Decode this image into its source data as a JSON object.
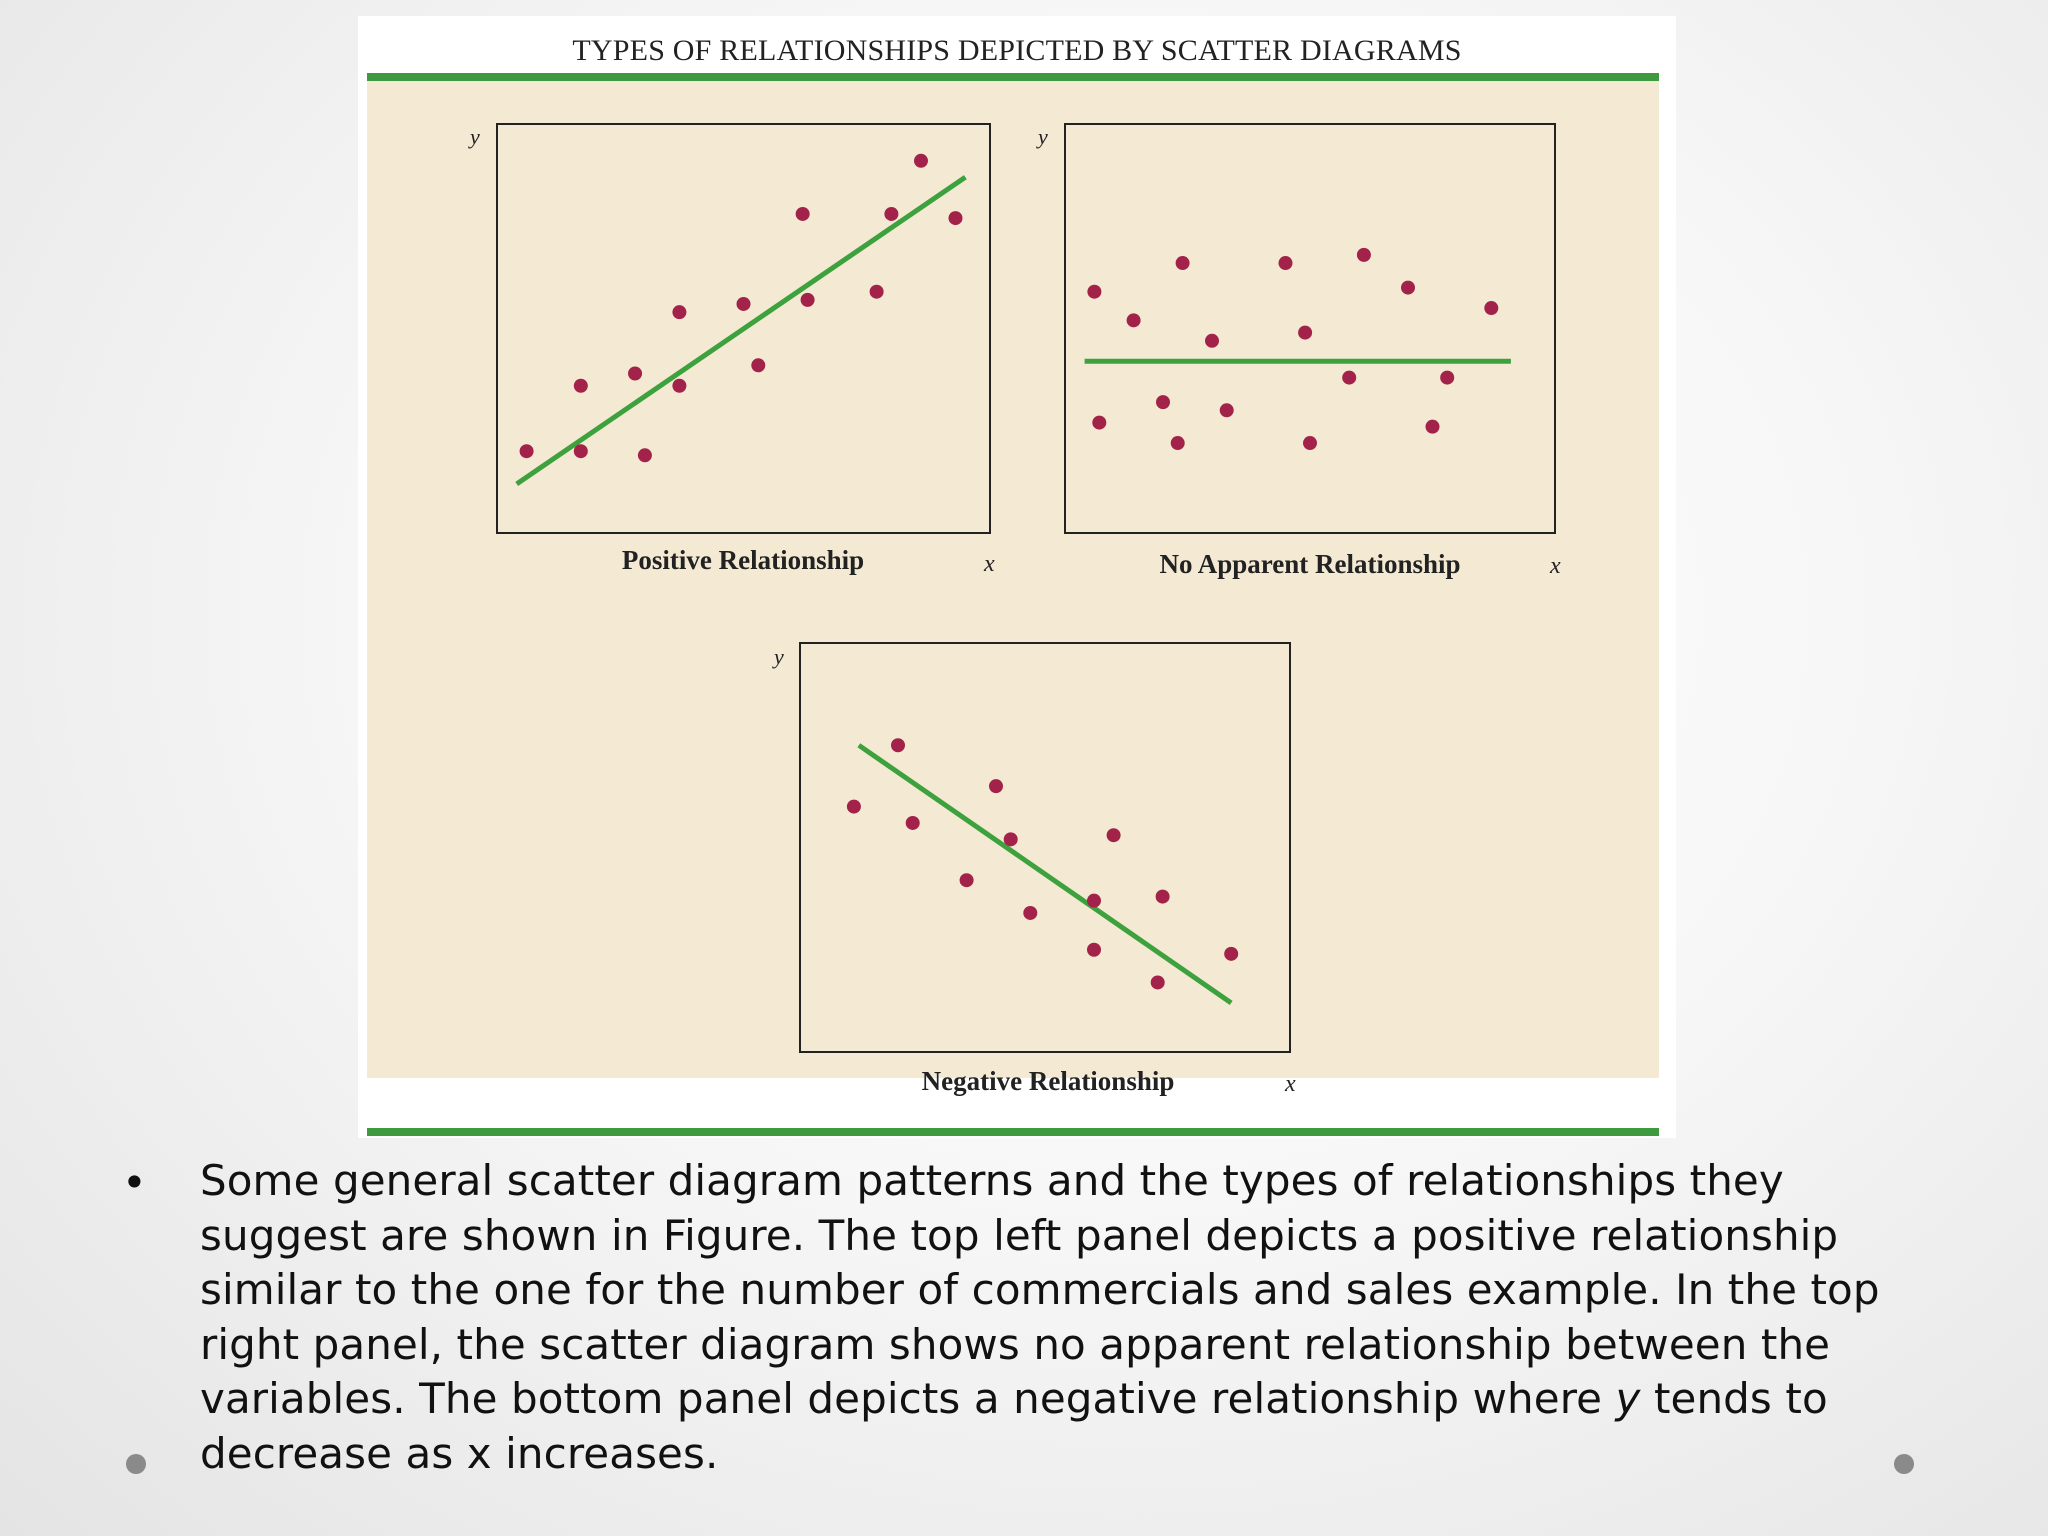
{
  "figure": {
    "title": "TYPES OF RELATIONSHIPS DEPICTED BY SCATTER DIAGRAMS"
  },
  "colors": {
    "panel_background": "#f4ead4",
    "rule_green": "#3f9a3f",
    "trend_line": "#3da13d",
    "points": "#a3224a",
    "frame": "#222222"
  },
  "chart_data": [
    {
      "type": "scatter",
      "panel": "top-left",
      "xlabel": "x",
      "ylabel": "y",
      "caption": "Positive Relationship",
      "xlim": [
        0,
        10
      ],
      "ylim": [
        0,
        10
      ],
      "points": [
        {
          "x": 0.6,
          "y": 2.0
        },
        {
          "x": 1.7,
          "y": 2.0
        },
        {
          "x": 3.0,
          "y": 1.9
        },
        {
          "x": 1.7,
          "y": 3.6
        },
        {
          "x": 2.8,
          "y": 3.9
        },
        {
          "x": 3.7,
          "y": 3.6
        },
        {
          "x": 3.7,
          "y": 5.4
        },
        {
          "x": 5.3,
          "y": 4.1
        },
        {
          "x": 5.0,
          "y": 5.6
        },
        {
          "x": 6.3,
          "y": 5.7
        },
        {
          "x": 6.2,
          "y": 7.8
        },
        {
          "x": 7.7,
          "y": 5.9
        },
        {
          "x": 8.0,
          "y": 7.8
        },
        {
          "x": 8.6,
          "y": 9.1
        },
        {
          "x": 9.3,
          "y": 7.7
        }
      ],
      "trend_line": [
        {
          "x": 0.4,
          "y": 1.2
        },
        {
          "x": 9.5,
          "y": 8.7
        }
      ]
    },
    {
      "type": "scatter",
      "panel": "top-right",
      "xlabel": "x",
      "ylabel": "y",
      "caption": "No Apparent Relationship",
      "xlim": [
        0,
        10
      ],
      "ylim": [
        0,
        10
      ],
      "points": [
        {
          "x": 0.6,
          "y": 5.9
        },
        {
          "x": 1.4,
          "y": 5.2
        },
        {
          "x": 2.4,
          "y": 6.6
        },
        {
          "x": 3.0,
          "y": 4.7
        },
        {
          "x": 4.5,
          "y": 6.6
        },
        {
          "x": 4.9,
          "y": 4.9
        },
        {
          "x": 6.1,
          "y": 6.8
        },
        {
          "x": 7.0,
          "y": 6.0
        },
        {
          "x": 8.7,
          "y": 5.5
        },
        {
          "x": 0.7,
          "y": 2.7
        },
        {
          "x": 2.0,
          "y": 3.2
        },
        {
          "x": 2.3,
          "y": 2.2
        },
        {
          "x": 3.3,
          "y": 3.0
        },
        {
          "x": 5.0,
          "y": 2.2
        },
        {
          "x": 5.8,
          "y": 3.8
        },
        {
          "x": 7.5,
          "y": 2.6
        },
        {
          "x": 7.8,
          "y": 3.8
        }
      ],
      "trend_line": [
        {
          "x": 0.4,
          "y": 4.2
        },
        {
          "x": 9.1,
          "y": 4.2
        }
      ]
    },
    {
      "type": "scatter",
      "panel": "bottom",
      "xlabel": "x",
      "ylabel": "y",
      "caption": "Negative Relationship",
      "xlim": [
        0,
        10
      ],
      "ylim": [
        0,
        10
      ],
      "points": [
        {
          "x": 1.1,
          "y": 6.0
        },
        {
          "x": 2.0,
          "y": 7.5
        },
        {
          "x": 2.3,
          "y": 5.6
        },
        {
          "x": 3.4,
          "y": 4.2
        },
        {
          "x": 4.0,
          "y": 6.5
        },
        {
          "x": 4.3,
          "y": 5.2
        },
        {
          "x": 4.7,
          "y": 3.4
        },
        {
          "x": 6.0,
          "y": 3.7
        },
        {
          "x": 6.4,
          "y": 5.3
        },
        {
          "x": 7.4,
          "y": 3.8
        },
        {
          "x": 6.0,
          "y": 2.5
        },
        {
          "x": 7.3,
          "y": 1.7
        },
        {
          "x": 8.8,
          "y": 2.4
        }
      ],
      "trend_line": [
        {
          "x": 1.2,
          "y": 7.5
        },
        {
          "x": 8.8,
          "y": 1.2
        }
      ]
    }
  ],
  "caption": {
    "bullet": "•",
    "text_before": "Some general scatter diagram patterns and the types of relationships they suggest are shown in Figure. The top left panel depicts a positive relationship similar to the one for the number of commercials and sales example. In the top right panel, the scatter diagram shows no apparent relationship between the variables. The bottom panel depicts a negative relationship where ",
    "y_variable": "y",
    "text_after": " tends to decrease as x increases."
  }
}
